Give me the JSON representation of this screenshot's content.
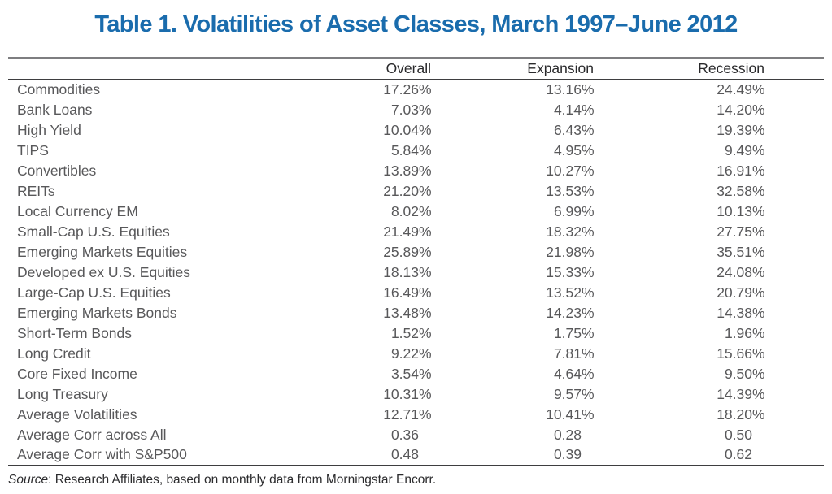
{
  "title": "Table 1. Volatilities of Asset Classes, March 1997–June 2012",
  "table": {
    "columns": [
      "",
      "Overall",
      "Expansion",
      "Recession"
    ],
    "rows": [
      {
        "label": "Commodities",
        "values": [
          "17.26%",
          "13.16%",
          "24.49%"
        ]
      },
      {
        "label": "Bank Loans",
        "values": [
          "7.03%",
          "4.14%",
          "14.20%"
        ]
      },
      {
        "label": "High Yield",
        "values": [
          "10.04%",
          "6.43%",
          "19.39%"
        ]
      },
      {
        "label": "TIPS",
        "values": [
          "5.84%",
          "4.95%",
          "9.49%"
        ]
      },
      {
        "label": "Convertibles",
        "values": [
          "13.89%",
          "10.27%",
          "16.91%"
        ]
      },
      {
        "label": "REITs",
        "values": [
          "21.20%",
          "13.53%",
          "32.58%"
        ]
      },
      {
        "label": "Local Currency EM",
        "values": [
          "8.02%",
          "6.99%",
          "10.13%"
        ]
      },
      {
        "label": "Small-Cap U.S. Equities",
        "values": [
          "21.49%",
          "18.32%",
          "27.75%"
        ]
      },
      {
        "label": "Emerging Markets Equities",
        "values": [
          "25.89%",
          "21.98%",
          "35.51%"
        ]
      },
      {
        "label": "Developed ex U.S. Equities",
        "values": [
          "18.13%",
          "15.33%",
          "24.08%"
        ]
      },
      {
        "label": "Large-Cap U.S. Equities",
        "values": [
          "16.49%",
          "13.52%",
          "20.79%"
        ]
      },
      {
        "label": "Emerging Markets Bonds",
        "values": [
          "13.48%",
          "14.23%",
          "14.38%"
        ]
      },
      {
        "label": "Short-Term Bonds",
        "values": [
          "1.52%",
          "1.75%",
          "1.96%"
        ]
      },
      {
        "label": "Long Credit",
        "values": [
          "9.22%",
          "7.81%",
          "15.66%"
        ]
      },
      {
        "label": "Core Fixed Income",
        "values": [
          "3.54%",
          "4.64%",
          "9.50%"
        ]
      },
      {
        "label": "Long Treasury",
        "values": [
          "10.31%",
          "9.57%",
          "14.39%"
        ]
      },
      {
        "label": "Average Volatilities",
        "values": [
          "12.71%",
          "10.41%",
          "18.20%"
        ]
      },
      {
        "label": "Average Corr across All",
        "values": [
          "0.36",
          "0.28",
          "0.50"
        ]
      },
      {
        "label": "Average Corr with S&P500",
        "values": [
          "0.48",
          "0.39",
          "0.62"
        ]
      }
    ]
  },
  "source": {
    "label": "Source",
    "text": ": Research Affiliates, based on monthly data from Morningstar Encorr."
  },
  "colors": {
    "title_blue": "#1A6CAD",
    "body_text": "#58585A",
    "header_text": "#29292B",
    "rule_gray": "#7E7E80",
    "rule_dark": "#3E3E40"
  }
}
